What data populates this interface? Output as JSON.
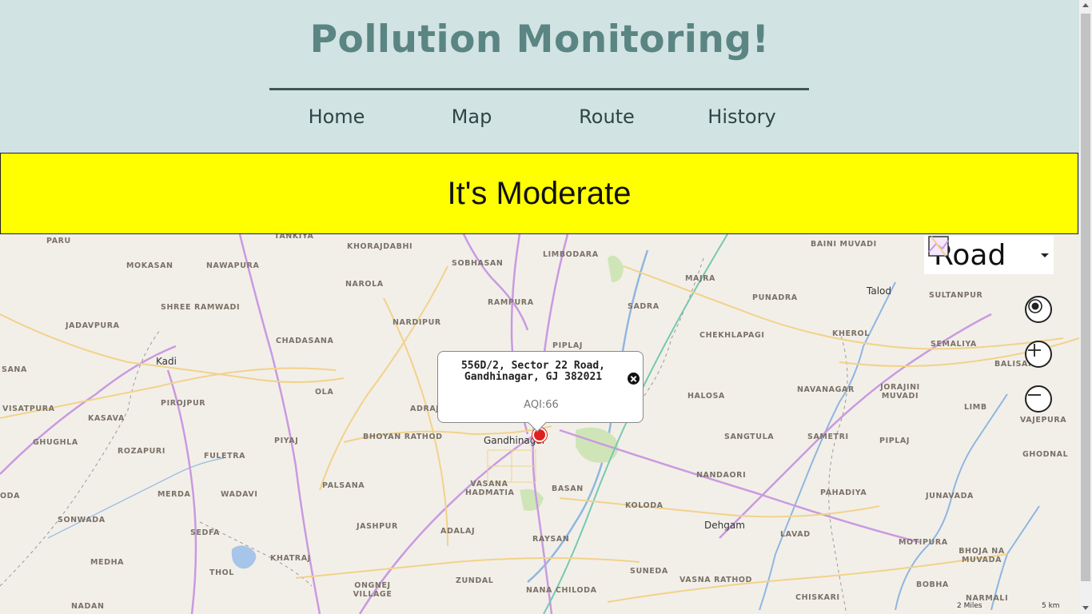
{
  "header": {
    "title": "Pollution Monitoring!",
    "nav": [
      "Home",
      "Map",
      "Route",
      "History"
    ]
  },
  "status": {
    "message": "It's Moderate",
    "color": "#ffff00"
  },
  "map": {
    "style_selector": {
      "selected": "Road",
      "icon": "map-style-icon"
    },
    "controls": [
      "locate-me-icon",
      "zoom-in-icon",
      "zoom-out-icon"
    ],
    "popup": {
      "address_line1": "556D/2, Sector 22 Road,",
      "address_line2": "Gandhinagar, GJ 382021",
      "aqi": "AQI:66"
    },
    "cities": [
      "Gandhinagar",
      "Kadi",
      "Talod",
      "Dehgam"
    ],
    "villages": [
      "PARU",
      "TANKIYA",
      "KHORAJDABHI",
      "LIMBODARA",
      "BAINI MUVADI",
      "MOKASAN",
      "NAWAPURA",
      "SOBHASAN",
      "MAJRA",
      "SHREE RAMWADI",
      "NAROLA",
      "RAMPURA",
      "SADRA",
      "PUNADRA",
      "SULTANPUR",
      "JADAVPURA",
      "NARDIPUR",
      "KHEROL",
      "CHADASANA",
      "PIPLAJ",
      "CHEKHLAPAGI",
      "SEMALIYA",
      "SANA",
      "BALISANA",
      "OLA",
      "HALOSA",
      "NAVANAGAR",
      "JORAJINI MUVADI",
      "VISATPURA",
      "PIROJPUR",
      "ADRAJ",
      "KASAVA",
      "LIMB",
      "VAJEPURA",
      "GHUGHLA",
      "BHOYAN RATHOD",
      "PIYAJ",
      "SANGTULA",
      "SAMETRI",
      "PIPLAJ",
      "ROZAPURI",
      "FULETRA",
      "GHODNAL",
      "PALSANA",
      "BASAN",
      "NANDAORI",
      "MERDA",
      "WADAVI",
      "VASANA HADMATIA",
      "KOLODA",
      "PAHADIYA",
      "JUNAVADA",
      "ODA",
      "SONWADA",
      "JASHPUR",
      "ADALAJ",
      "SEDFA",
      "RAYSAN",
      "LAVAD",
      "MOTIPURA",
      "MEDHA",
      "KHATRAJ",
      "BHOJA NA MUVADA",
      "THOL",
      "ZUNDAL",
      "SUNEDA",
      "VASNA RATHOD",
      "BOBHA",
      "ONGNEJ VILLAGE",
      "NANA CHILODA",
      "CHISKARI",
      "NARMALI",
      "NADAN"
    ],
    "scale": {
      "miles": "2 Miles",
      "km": "5 km"
    }
  }
}
